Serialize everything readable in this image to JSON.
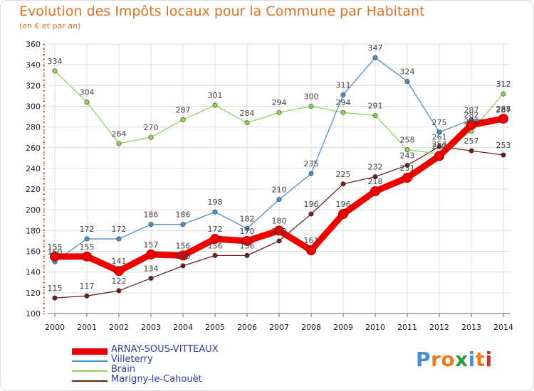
{
  "header": {
    "title": "Evolution des Impôts locaux pour la Commune par Habitant",
    "subtitle": "(en € et par an)"
  },
  "logo": {
    "text": "Proxiti",
    "colors": [
      "#4a8fd4",
      "#f07c1f",
      "#f07c1f",
      "#2e9b3a",
      "#4a8fd4",
      "#f07c1f",
      "#c8332c"
    ]
  },
  "chart_data": {
    "type": "line",
    "x": [
      "2000",
      "2001",
      "2002",
      "2003",
      "2004",
      "2005",
      "2006",
      "2007",
      "2008",
      "2009",
      "2010",
      "2011",
      "2012",
      "2013",
      "2014"
    ],
    "ylim": [
      100,
      360
    ],
    "yticks": [
      100,
      120,
      140,
      160,
      180,
      200,
      220,
      240,
      260,
      280,
      300,
      320,
      340,
      360
    ],
    "grid": true,
    "legend_position": "bottom-left",
    "series": [
      {
        "name": "Marigny-le-Cahouët",
        "color": "#6b1e1e",
        "values": [
          115,
          117,
          122,
          134,
          146,
          156,
          156,
          170,
          196,
          225,
          232,
          243,
          261,
          257,
          253
        ],
        "labels": [
          "115",
          "117",
          "122",
          "134",
          "146",
          "156",
          "156",
          "170",
          "196",
          "225",
          "232",
          "243",
          "261",
          "257",
          "253"
        ]
      },
      {
        "name": "Brain",
        "color": "#8fd45a",
        "values": [
          334,
          304,
          264,
          270,
          287,
          301,
          284,
          294,
          300,
          294,
          291,
          258,
          254,
          276,
          312
        ],
        "labels": [
          "334",
          "304",
          "264",
          "270",
          "287",
          "301",
          "284",
          "294",
          "300",
          "294",
          "291",
          "258",
          "254",
          "276",
          "312"
        ]
      },
      {
        "name": "Villeterry",
        "color": "#4a90c8",
        "values": [
          150,
          172,
          172,
          186,
          186,
          198,
          182,
          210,
          235,
          311,
          347,
          324,
          275,
          287,
          287
        ],
        "labels": [
          "150",
          "172",
          "172",
          "186",
          "186",
          "198",
          "182",
          "210",
          "235",
          "311",
          "347",
          "324",
          "275",
          "287",
          "287"
        ]
      },
      {
        "name": "ARNAY-SOUS-VITTEAUX",
        "color": "#ee0000",
        "values": [
          155,
          155,
          141,
          157,
          156,
          172,
          170,
          180,
          161,
          196,
          218,
          231,
          252,
          282,
          288
        ],
        "labels": [
          "155",
          "155",
          "141",
          "157",
          "156",
          "172",
          "170",
          "180",
          "161",
          "196",
          "218",
          "231",
          "252",
          "282",
          "288"
        ]
      }
    ]
  }
}
